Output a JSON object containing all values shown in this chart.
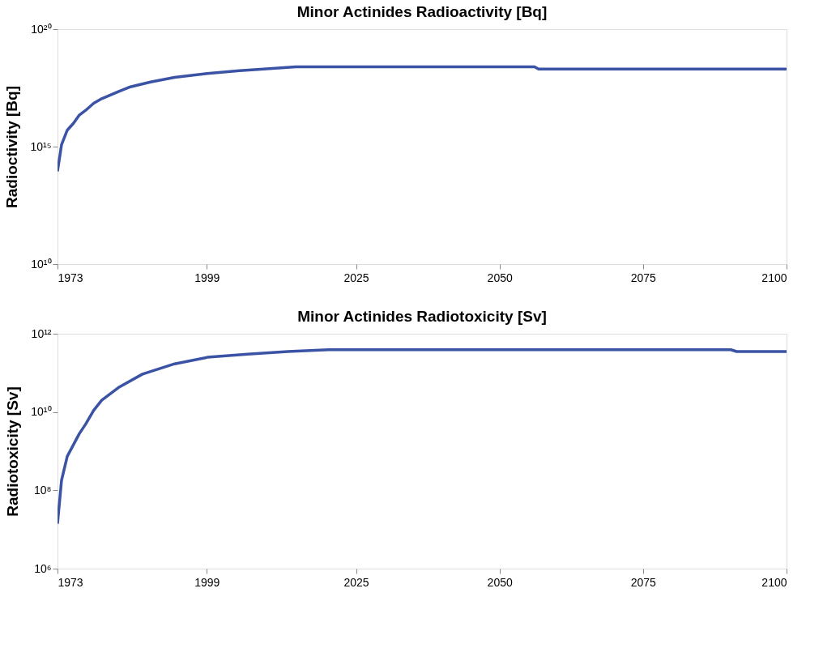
{
  "chart_data": [
    {
      "type": "line",
      "title": "Minor Actinides Radioactivity [Bq]",
      "ylabel": "Radioctivity [Bq]",
      "log": true,
      "grid": false,
      "xlim": [
        1973,
        2100
      ],
      "xticks": [
        1973,
        1999,
        2025,
        2050,
        2075,
        2100
      ],
      "ylim": [
        10000000000.0,
        1e+20
      ],
      "yticks": [
        {
          "value": 10000000000.0,
          "label": "10¹⁰"
        },
        {
          "value": 1000000000000000.0,
          "label": "10¹⁵"
        },
        {
          "value": 1e+20,
          "label": "10²⁰"
        }
      ],
      "series": [
        {
          "color": "#3a53a4",
          "x": [
            1973,
            1973.7,
            1974.7,
            1975.8,
            1976.8,
            1977.9,
            1979.3,
            1980.7,
            1983.6,
            1985.7,
            1989.2,
            1993.4,
            1999.1,
            2004.7,
            2008.9,
            2014.5,
            2056.1,
            2056.8,
            2100
          ],
          "values": [
            89000000000000.0,
            1200000000000000.0,
            5000000000000000.0,
            1e+16,
            2.2e+16,
            3.5e+16,
            7e+16,
            1.1e+17,
            2.2e+17,
            3.5e+17,
            5.6e+17,
            8.9e+17,
            1.3e+18,
            1.7e+18,
            2e+18,
            2.5e+18,
            2.5e+18,
            2e+18,
            2e+18
          ]
        }
      ]
    },
    {
      "type": "line",
      "title": "Minor Actinides Radiotoxicity [Sv]",
      "ylabel": "Radiotoxicity [Sv]",
      "log": true,
      "grid": false,
      "xlim": [
        1973,
        2100
      ],
      "xticks": [
        1973,
        1999,
        2025,
        2050,
        2075,
        2100
      ],
      "ylim": [
        1000000.0,
        1000000000000.0
      ],
      "yticks": [
        {
          "value": 1000000.0,
          "label": "10⁶"
        },
        {
          "value": 100000000.0,
          "label": "10⁸"
        },
        {
          "value": 10000000000.0,
          "label": "10¹⁰"
        },
        {
          "value": 1000000000000.0,
          "label": "10¹²"
        }
      ],
      "series": [
        {
          "color": "#3a53a4",
          "x": [
            1973,
            1973.7,
            1974.7,
            1976.8,
            1977.9,
            1979.3,
            1980.7,
            1983.6,
            1987.8,
            1993.4,
            1999.1,
            2006.1,
            2013.1,
            2020.2,
            2090.3,
            2091.3,
            2100
          ],
          "values": [
            14000000.0,
            180000000.0,
            740000000.0,
            2800000000.0,
            4900000000.0,
            11000000000.0,
            20000000000.0,
            42000000000.0,
            93000000000.0,
            170000000000.0,
            250000000000.0,
            300000000000.0,
            350000000000.0,
            390000000000.0,
            390000000000.0,
            350000000000.0,
            350000000000.0
          ]
        }
      ]
    }
  ]
}
